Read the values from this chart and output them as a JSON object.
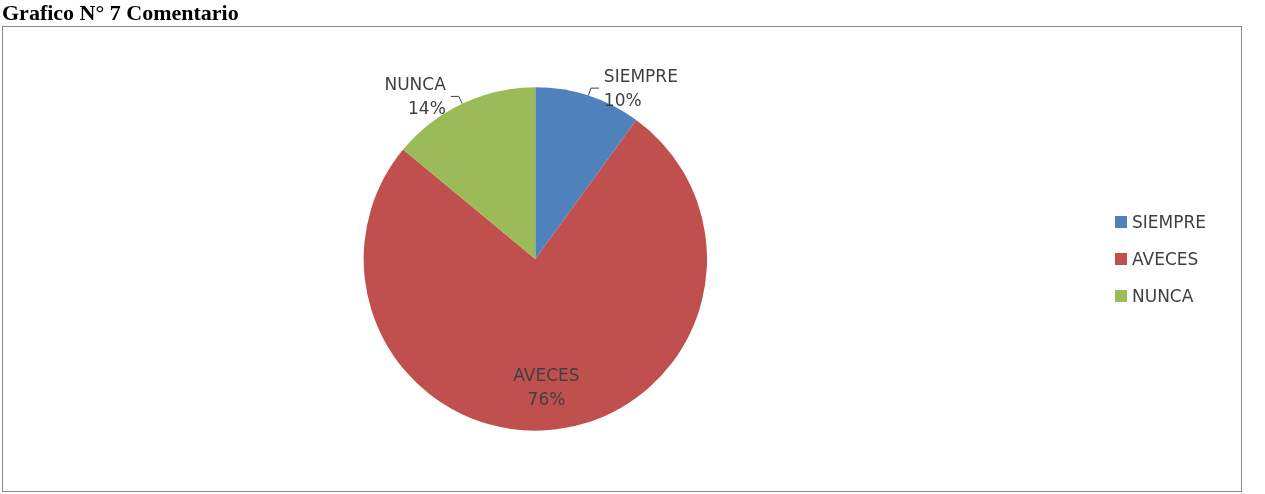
{
  "chart_data": {
    "type": "pie",
    "title": "Grafico N° 7  Comentario",
    "categories": [
      "SIEMPRE",
      "AVECES",
      "NUNCA"
    ],
    "values": [
      10,
      76,
      14
    ],
    "colors": [
      "#4f81bd",
      "#c0504d",
      "#9bbb59"
    ],
    "value_labels": [
      "10%",
      "76%",
      "14%"
    ],
    "legend": "right"
  }
}
